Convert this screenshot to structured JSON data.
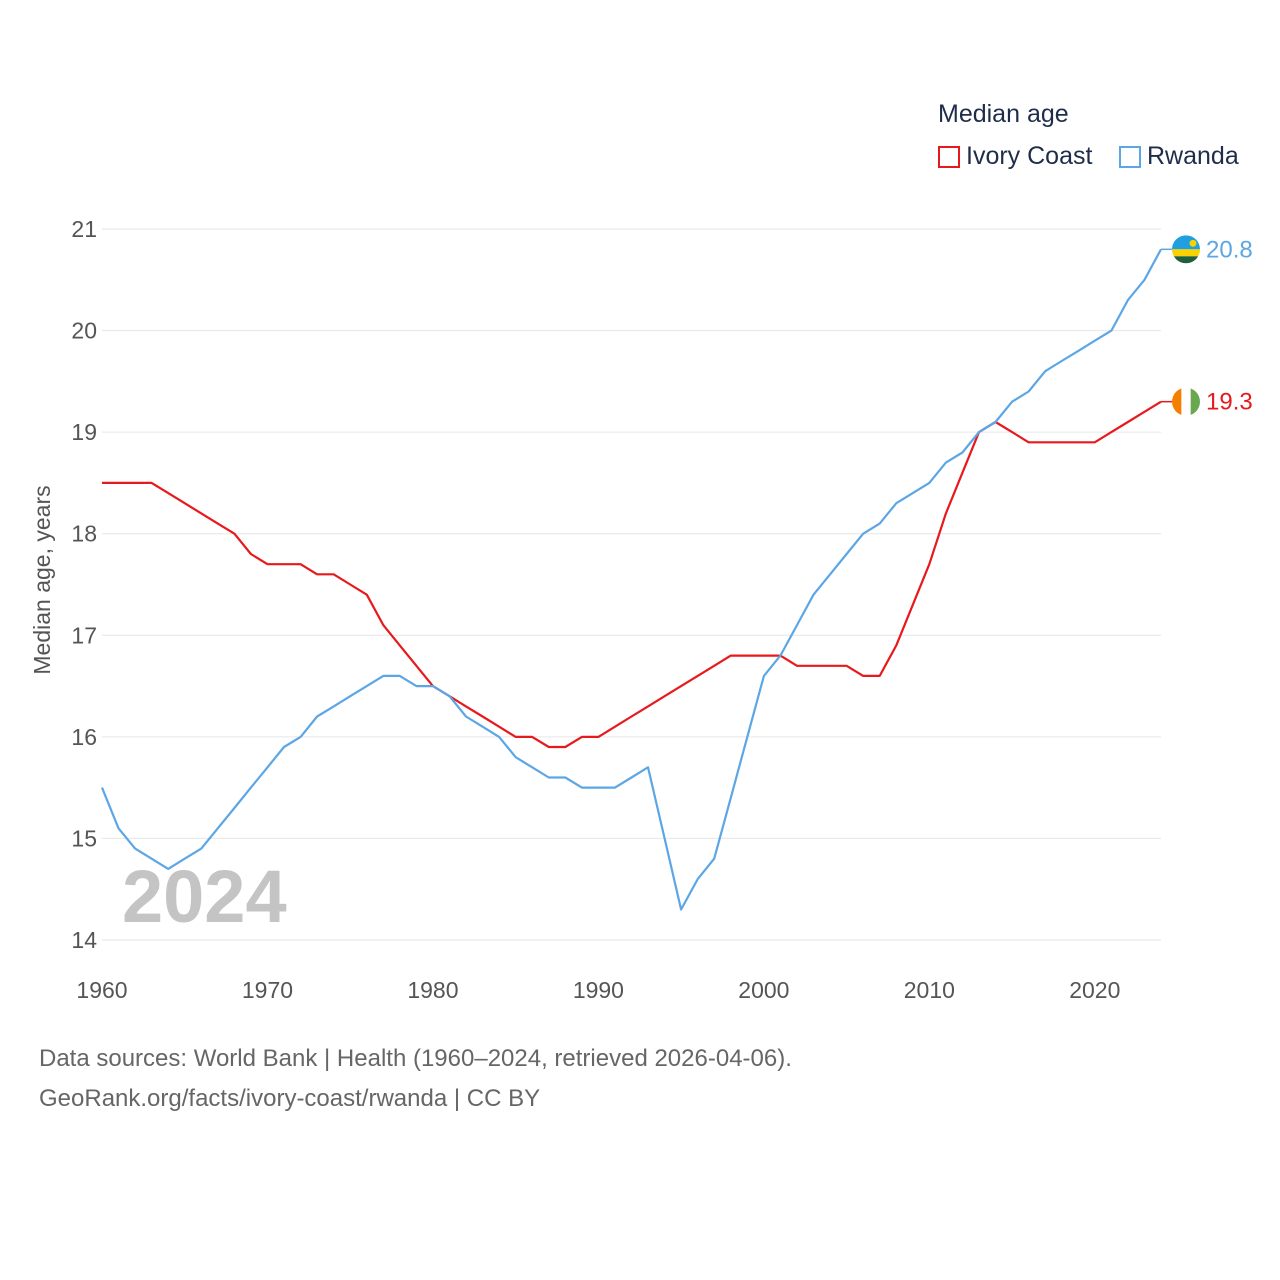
{
  "chart_data": {
    "type": "line",
    "title": "Median age",
    "ylabel": "Median age, years",
    "xlabel": "",
    "xlim": [
      1960,
      2024
    ],
    "ylim": [
      14,
      21
    ],
    "xticks": [
      1960,
      1970,
      1980,
      1990,
      2000,
      2010,
      2020
    ],
    "yticks": [
      14,
      15,
      16,
      17,
      18,
      19,
      20,
      21
    ],
    "grid": true,
    "legend_position": "top-right",
    "year_overlay": "2024",
    "series": [
      {
        "name": "Ivory Coast",
        "color": "#e8191c",
        "end_label": "19.3",
        "x": [
          1960,
          1961,
          1962,
          1963,
          1964,
          1965,
          1966,
          1967,
          1968,
          1969,
          1970,
          1971,
          1972,
          1973,
          1974,
          1975,
          1976,
          1977,
          1978,
          1979,
          1980,
          1981,
          1982,
          1983,
          1984,
          1985,
          1986,
          1987,
          1988,
          1989,
          1990,
          1991,
          1992,
          1993,
          1994,
          1995,
          1996,
          1997,
          1998,
          1999,
          2000,
          2001,
          2002,
          2003,
          2004,
          2005,
          2006,
          2007,
          2008,
          2009,
          2010,
          2011,
          2012,
          2013,
          2014,
          2015,
          2016,
          2017,
          2018,
          2019,
          2020,
          2021,
          2022,
          2023,
          2024
        ],
        "y": [
          18.5,
          18.5,
          18.5,
          18.5,
          18.4,
          18.3,
          18.2,
          18.1,
          18.0,
          17.8,
          17.7,
          17.7,
          17.7,
          17.6,
          17.6,
          17.5,
          17.4,
          17.1,
          16.9,
          16.7,
          16.5,
          16.4,
          16.3,
          16.2,
          16.1,
          16.0,
          16.0,
          15.9,
          15.9,
          16.0,
          16.0,
          16.1,
          16.2,
          16.3,
          16.4,
          16.5,
          16.6,
          16.7,
          16.8,
          16.8,
          16.8,
          16.8,
          16.7,
          16.7,
          16.7,
          16.7,
          16.6,
          16.6,
          16.9,
          17.3,
          17.7,
          18.2,
          18.6,
          19.0,
          19.1,
          19.0,
          18.9,
          18.9,
          18.9,
          18.9,
          18.9,
          19.0,
          19.1,
          19.2,
          19.3
        ]
      },
      {
        "name": "Rwanda",
        "color": "#5ca6e6",
        "end_label": "20.8",
        "x": [
          1960,
          1961,
          1962,
          1963,
          1964,
          1965,
          1966,
          1967,
          1968,
          1969,
          1970,
          1971,
          1972,
          1973,
          1974,
          1975,
          1976,
          1977,
          1978,
          1979,
          1980,
          1981,
          1982,
          1983,
          1984,
          1985,
          1986,
          1987,
          1988,
          1989,
          1990,
          1991,
          1992,
          1993,
          1994,
          1995,
          1996,
          1997,
          1998,
          1999,
          2000,
          2001,
          2002,
          2003,
          2004,
          2005,
          2006,
          2007,
          2008,
          2009,
          2010,
          2011,
          2012,
          2013,
          2014,
          2015,
          2016,
          2017,
          2018,
          2019,
          2020,
          2021,
          2022,
          2023,
          2024
        ],
        "y": [
          15.5,
          15.1,
          14.9,
          14.8,
          14.7,
          14.8,
          14.9,
          15.1,
          15.3,
          15.5,
          15.7,
          15.9,
          16.0,
          16.2,
          16.3,
          16.4,
          16.5,
          16.6,
          16.6,
          16.5,
          16.5,
          16.4,
          16.2,
          16.1,
          16.0,
          15.8,
          15.7,
          15.6,
          15.6,
          15.5,
          15.5,
          15.5,
          15.6,
          15.7,
          15.0,
          14.3,
          14.6,
          14.8,
          15.4,
          16.0,
          16.6,
          16.8,
          17.1,
          17.4,
          17.6,
          17.8,
          18.0,
          18.1,
          18.3,
          18.4,
          18.5,
          18.7,
          18.8,
          19.0,
          19.1,
          19.3,
          19.4,
          19.6,
          19.7,
          19.8,
          19.9,
          20.0,
          20.3,
          20.5,
          20.8
        ]
      }
    ]
  },
  "legend": {
    "title": "Median age",
    "items": [
      {
        "label": "Ivory Coast",
        "color": "#e8191c"
      },
      {
        "label": "Rwanda",
        "color": "#5ca6e6"
      }
    ]
  },
  "footer": {
    "line1": "Data sources: World Bank | Health (1960–2024, retrieved 2026-04-06).",
    "line2": "GeoRank.org/facts/ivory-coast/rwanda | CC BY"
  }
}
